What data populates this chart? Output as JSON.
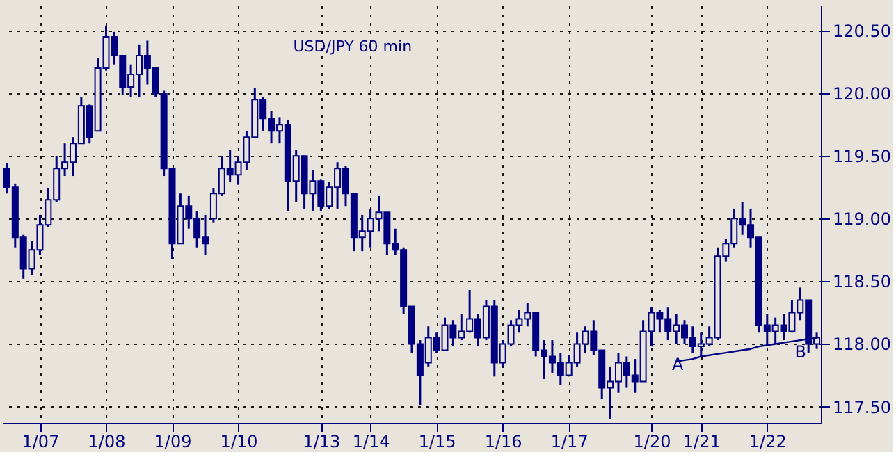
{
  "chart_data": {
    "type": "candlestick",
    "title": "USD/JPY 60 min",
    "color": "#000080",
    "categories": [
      null,
      null,
      null,
      null,
      "1/07",
      null,
      null,
      null,
      null,
      null,
      null,
      null,
      "1/08",
      null,
      null,
      null,
      null,
      null,
      null,
      null,
      "1/09",
      null,
      null,
      null,
      null,
      null,
      null,
      null,
      "1/10",
      null,
      null,
      null,
      null,
      null,
      null,
      null,
      null,
      null,
      "1/13",
      null,
      null,
      null,
      null,
      null,
      "1/14",
      null,
      null,
      null,
      null,
      null,
      null,
      null,
      "1/15",
      null,
      null,
      null,
      null,
      null,
      null,
      null,
      "1/16",
      null,
      null,
      null,
      null,
      null,
      null,
      null,
      "1/17",
      null,
      null,
      null,
      null,
      null,
      null,
      null,
      null,
      null,
      "1/20",
      null,
      null,
      null,
      null,
      null,
      "1/21",
      null,
      null,
      null,
      null,
      null,
      null,
      null,
      "1/22",
      null,
      null,
      null,
      null,
      null,
      null
    ],
    "ohlc": [
      [
        119.4,
        119.44,
        119.2,
        119.25
      ],
      [
        119.25,
        119.28,
        118.77,
        118.85
      ],
      [
        118.85,
        118.87,
        118.52,
        118.6
      ],
      [
        118.6,
        118.82,
        118.55,
        118.75
      ],
      [
        118.75,
        119.03,
        118.71,
        118.95
      ],
      [
        118.95,
        119.24,
        118.93,
        119.15
      ],
      [
        119.15,
        119.5,
        119.13,
        119.4
      ],
      [
        119.4,
        119.6,
        119.34,
        119.45
      ],
      [
        119.45,
        119.65,
        119.34,
        119.6
      ],
      [
        119.6,
        119.97,
        119.6,
        119.9
      ],
      [
        119.9,
        119.91,
        119.6,
        119.65
      ],
      [
        119.7,
        120.28,
        119.7,
        120.2
      ],
      [
        120.2,
        120.54,
        120.18,
        120.45
      ],
      [
        120.45,
        120.49,
        120.23,
        120.3
      ],
      [
        120.3,
        120.3,
        119.99,
        120.05
      ],
      [
        120.05,
        120.23,
        119.97,
        120.15
      ],
      [
        120.15,
        120.39,
        119.97,
        120.3
      ],
      [
        120.3,
        120.42,
        120.07,
        120.2
      ],
      [
        120.2,
        120.2,
        119.97,
        120.0
      ],
      [
        120.0,
        120.02,
        119.34,
        119.4
      ],
      [
        119.4,
        119.4,
        118.68,
        118.8
      ],
      [
        118.8,
        119.2,
        118.8,
        119.1
      ],
      [
        119.1,
        119.18,
        118.92,
        119.0
      ],
      [
        119.0,
        119.06,
        118.77,
        118.85
      ],
      [
        118.85,
        119.03,
        118.71,
        118.8
      ],
      [
        119.0,
        119.24,
        118.97,
        119.2
      ],
      [
        119.2,
        119.5,
        119.18,
        119.4
      ],
      [
        119.4,
        119.55,
        119.29,
        119.35
      ],
      [
        119.35,
        119.5,
        119.27,
        119.45
      ],
      [
        119.45,
        119.7,
        119.39,
        119.65
      ],
      [
        119.65,
        120.04,
        119.65,
        119.95
      ],
      [
        119.95,
        119.97,
        119.7,
        119.8
      ],
      [
        119.8,
        119.86,
        119.6,
        119.7
      ],
      [
        119.7,
        119.81,
        119.6,
        119.75
      ],
      [
        119.75,
        119.79,
        119.06,
        119.3
      ],
      [
        119.3,
        119.55,
        119.13,
        119.5
      ],
      [
        119.5,
        119.5,
        119.08,
        119.2
      ],
      [
        119.2,
        119.39,
        119.06,
        119.3
      ],
      [
        119.3,
        119.31,
        119.06,
        119.1
      ],
      [
        119.1,
        119.29,
        119.08,
        119.25
      ],
      [
        119.25,
        119.45,
        119.08,
        119.4
      ],
      [
        119.4,
        119.42,
        119.1,
        119.2
      ],
      [
        119.2,
        119.2,
        118.74,
        118.85
      ],
      [
        118.85,
        119.03,
        118.74,
        118.9
      ],
      [
        118.9,
        119.08,
        118.77,
        119.0
      ],
      [
        119.0,
        119.18,
        118.9,
        119.05
      ],
      [
        119.05,
        119.05,
        118.71,
        118.8
      ],
      [
        118.8,
        118.92,
        118.71,
        118.75
      ],
      [
        118.75,
        118.77,
        118.24,
        118.3
      ],
      [
        118.3,
        118.3,
        117.93,
        118.0
      ],
      [
        118.0,
        118.03,
        117.51,
        117.75
      ],
      [
        117.85,
        118.14,
        117.82,
        118.05
      ],
      [
        118.05,
        118.09,
        117.93,
        117.95
      ],
      [
        117.95,
        118.21,
        117.95,
        118.15
      ],
      [
        118.15,
        118.19,
        117.98,
        118.05
      ],
      [
        118.05,
        118.24,
        118.03,
        118.1
      ],
      [
        118.1,
        118.43,
        118.09,
        118.2
      ],
      [
        118.2,
        118.24,
        117.98,
        118.05
      ],
      [
        118.05,
        118.35,
        118.03,
        118.3
      ],
      [
        118.3,
        118.35,
        117.74,
        117.85
      ],
      [
        117.85,
        118.03,
        117.82,
        118.0
      ],
      [
        118.0,
        118.19,
        117.98,
        118.15
      ],
      [
        118.15,
        118.27,
        118.09,
        118.2
      ],
      [
        118.2,
        118.33,
        118.14,
        118.25
      ],
      [
        118.25,
        118.25,
        117.9,
        117.95
      ],
      [
        117.95,
        118.03,
        117.72,
        117.9
      ],
      [
        117.9,
        118.03,
        117.77,
        117.85
      ],
      [
        117.85,
        117.93,
        117.67,
        117.75
      ],
      [
        117.75,
        117.91,
        117.74,
        117.85
      ],
      [
        117.85,
        118.09,
        117.82,
        118.0
      ],
      [
        118.0,
        118.14,
        117.93,
        118.1
      ],
      [
        118.1,
        118.19,
        117.91,
        117.95
      ],
      [
        117.95,
        117.95,
        117.56,
        117.65
      ],
      [
        117.65,
        117.82,
        117.4,
        117.7
      ],
      [
        117.7,
        117.93,
        117.61,
        117.85
      ],
      [
        117.85,
        117.9,
        117.65,
        117.75
      ],
      [
        117.75,
        117.88,
        117.61,
        117.7
      ],
      [
        117.7,
        118.19,
        117.7,
        118.1
      ],
      [
        118.1,
        118.29,
        117.98,
        118.25
      ],
      [
        118.25,
        118.27,
        118.09,
        118.2
      ],
      [
        118.2,
        118.29,
        118.03,
        118.1
      ],
      [
        118.1,
        118.24,
        118.0,
        118.15
      ],
      [
        118.15,
        118.19,
        118.0,
        118.05
      ],
      [
        118.05,
        118.14,
        117.93,
        117.98
      ],
      [
        117.98,
        118.09,
        117.9,
        118.0
      ],
      [
        118.0,
        118.14,
        117.98,
        118.05
      ],
      [
        118.05,
        118.77,
        118.03,
        118.7
      ],
      [
        118.7,
        118.84,
        118.66,
        118.8
      ],
      [
        118.8,
        119.08,
        118.77,
        119.0
      ],
      [
        119.0,
        119.13,
        118.87,
        118.95
      ],
      [
        118.95,
        119.08,
        118.77,
        118.85
      ],
      [
        118.85,
        118.85,
        118.09,
        118.15
      ],
      [
        118.15,
        118.24,
        117.98,
        118.1
      ],
      [
        118.1,
        118.21,
        118.0,
        118.15
      ],
      [
        118.15,
        118.24,
        118.03,
        118.1
      ],
      [
        118.1,
        118.35,
        118.09,
        118.25
      ],
      [
        118.25,
        118.45,
        118.19,
        118.35
      ],
      [
        118.35,
        118.35,
        117.93,
        118.0
      ],
      [
        118.0,
        118.09,
        117.96,
        118.05
      ]
    ],
    "series": [
      {
        "type": "line",
        "color": "#000080",
        "values": [
          null,
          null,
          null,
          null,
          null,
          null,
          null,
          null,
          null,
          null,
          null,
          null,
          null,
          null,
          null,
          null,
          null,
          null,
          null,
          null,
          null,
          null,
          null,
          null,
          null,
          null,
          null,
          null,
          null,
          null,
          null,
          null,
          null,
          null,
          null,
          null,
          null,
          null,
          null,
          null,
          null,
          null,
          null,
          null,
          null,
          null,
          null,
          null,
          null,
          null,
          null,
          null,
          null,
          null,
          null,
          null,
          null,
          null,
          null,
          null,
          null,
          null,
          null,
          null,
          null,
          null,
          null,
          null,
          null,
          null,
          null,
          null,
          null,
          null,
          null,
          null,
          null,
          null,
          null,
          null,
          null,
          117.86,
          117.87,
          117.88,
          117.9,
          117.91,
          117.92,
          117.93,
          117.94,
          117.95,
          117.96,
          117.98,
          117.99,
          118.0,
          118.01,
          118.02,
          118.03,
          118.04,
          118.05
        ]
      }
    ],
    "annotations": [
      "A",
      "B"
    ],
    "ylim": [
      117.37,
      120.7
    ],
    "yticks": [
      {
        "value": 117.5,
        "label": "117.50"
      },
      {
        "value": 118.0,
        "label": "118.00"
      },
      {
        "value": 118.5,
        "label": "118.50"
      },
      {
        "value": 119.0,
        "label": "119.00"
      },
      {
        "value": 119.5,
        "label": "119.50"
      },
      {
        "value": 120.0,
        "label": "120.00"
      },
      {
        "value": 120.5,
        "label": "120.50"
      }
    ],
    "grid": true
  }
}
